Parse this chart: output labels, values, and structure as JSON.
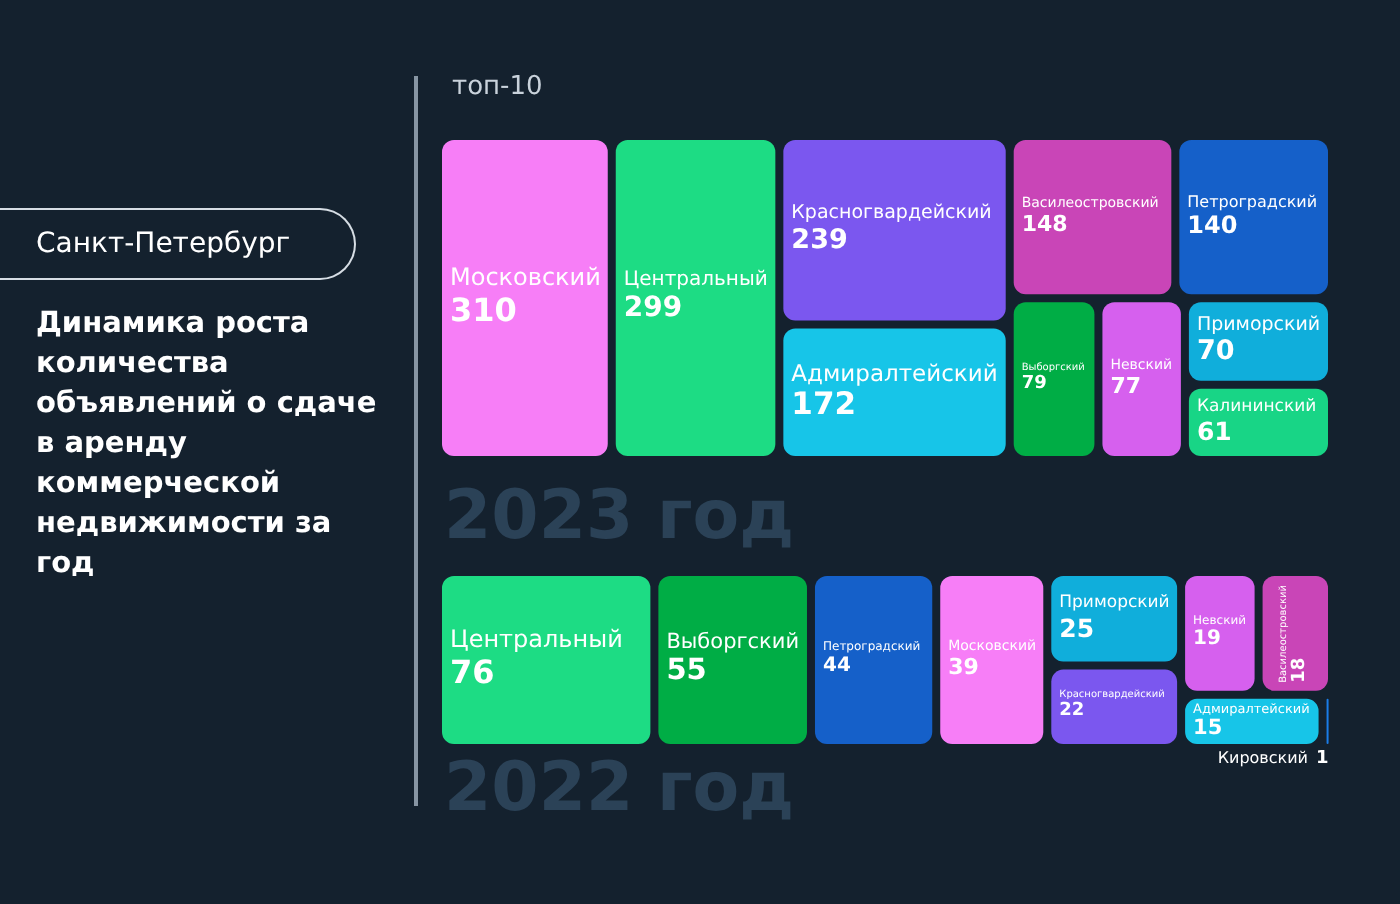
{
  "chart_data": [
    {
      "type": "other",
      "subtitle": "Санкт-Петербург",
      "title": "Динамика роста количества объявлений о сдаче в аренду коммерческой недвижимости за год"
    },
    {
      "type": "other",
      "title": "2023 год",
      "annotations": [
        "топ-10"
      ],
      "data_labels": true,
      "categories": [
        "Московский",
        "Центральный",
        "Красногвардейский",
        "Адмиралтейский",
        "Василеостровский",
        "Петроградский",
        "Выборгский",
        "Невский",
        "Приморский",
        "Калининский"
      ],
      "values": [
        310,
        299,
        239,
        172,
        148,
        140,
        79,
        77,
        70,
        61
      ],
      "colors": [
        "#f77ef7",
        "#1ddc84",
        "#7b57ef",
        "#17c5e8",
        "#c945b7",
        "#1560c9",
        "#00ad45",
        "#d660ee",
        "#10aedb",
        "#18d586"
      ]
    },
    {
      "type": "other",
      "title": "2022 год",
      "data_labels": true,
      "categories": [
        "Центральный",
        "Выборгский",
        "Петроградский",
        "Московский",
        "Приморский",
        "Красногвардейский",
        "Невский",
        "Василеостровский",
        "Адмиралтейский",
        "Кировский"
      ],
      "values": [
        76,
        55,
        44,
        39,
        25,
        22,
        19,
        18,
        15,
        1
      ],
      "colors": [
        "#1ddc84",
        "#00ad45",
        "#1560c9",
        "#f77ef7",
        "#10aedb",
        "#7b57ef",
        "#d660ee",
        "#c945b7",
        "#17c5e8",
        "#1a7de8"
      ]
    }
  ]
}
